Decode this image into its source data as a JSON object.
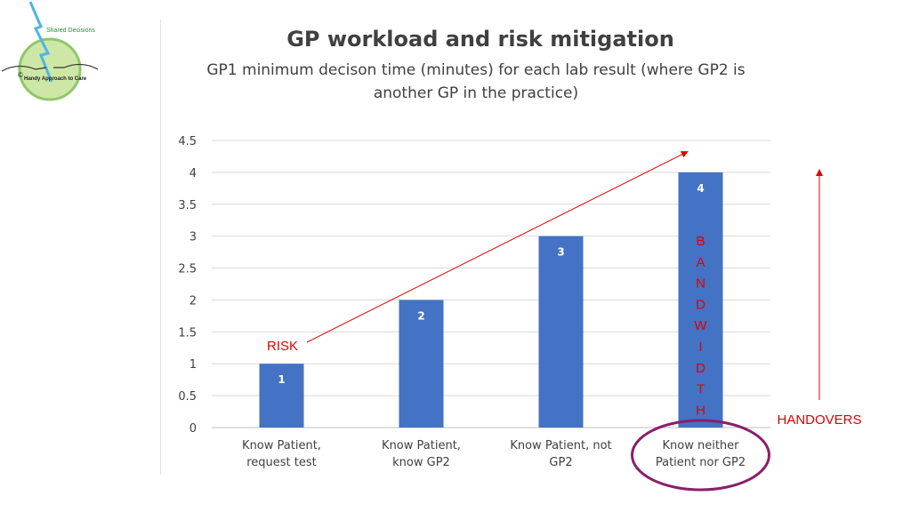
{
  "logo": {
    "tagline": "Shared Decisions",
    "caption": "Handy Approach to Care",
    "copyright": "©"
  },
  "chart_data": {
    "type": "bar",
    "title": "GP workload and risk mitigation",
    "subtitle": "GP1 minimum decison time (minutes) for each lab result (where GP2 is another GP in the practice)",
    "categories": [
      [
        "Know Patient,",
        "request test"
      ],
      [
        "Know Patient,",
        "know GP2"
      ],
      [
        "Know Patient, not",
        "GP2"
      ],
      [
        "Know neither",
        "Patient nor GP2"
      ]
    ],
    "values": [
      1,
      2,
      3,
      4
    ],
    "data_labels": [
      "1",
      "2",
      "3",
      "4"
    ],
    "ylim": [
      0,
      4.5
    ],
    "y_ticks": [
      "0",
      "0.5",
      "1",
      "1.5",
      "2",
      "2.5",
      "3",
      "3.5",
      "4",
      "4.5"
    ],
    "y_tick_values": [
      0,
      0.5,
      1,
      1.5,
      2,
      2.5,
      3,
      3.5,
      4,
      4.5
    ],
    "grid": true,
    "xlabel": "",
    "ylabel": "",
    "bar_color": "#4472c4",
    "annotations": {
      "risk": "RISK",
      "bandwidth_letters": [
        "B",
        "A",
        "N",
        "D",
        "W",
        "I",
        "D",
        "T",
        "H"
      ],
      "handovers": "HANDOVERS",
      "annotation_color": "#e00000",
      "highlight_color": "#8b1e6b"
    }
  }
}
